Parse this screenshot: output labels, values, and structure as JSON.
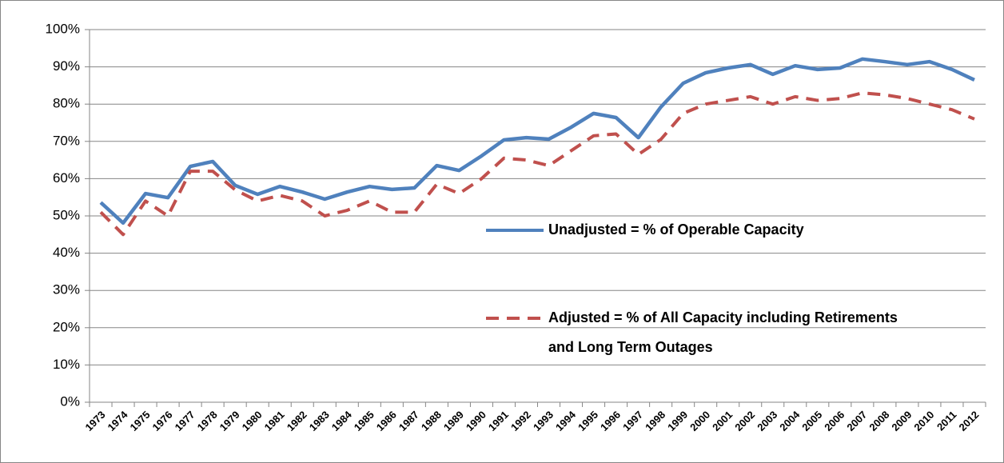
{
  "chart_data": {
    "type": "line",
    "categories": [
      "1973",
      "1974",
      "1975",
      "1976",
      "1977",
      "1978",
      "1979",
      "1980",
      "1981",
      "1982",
      "1983",
      "1984",
      "1985",
      "1986",
      "1987",
      "1988",
      "1989",
      "1990",
      "1991",
      "1992",
      "1993",
      "1994",
      "1995",
      "1996",
      "1997",
      "1998",
      "1999",
      "2000",
      "2001",
      "2002",
      "2003",
      "2004",
      "2005",
      "2006",
      "2007",
      "2008",
      "2009",
      "2010",
      "2011",
      "2012"
    ],
    "series": [
      {
        "name": "Unadjusted = % of Operable Capacity",
        "color": "#4f81bd",
        "dash": false,
        "values": [
          53.6,
          48.1,
          56.0,
          54.9,
          63.3,
          64.6,
          58.2,
          55.8,
          57.9,
          56.4,
          54.5,
          56.4,
          57.9,
          57.1,
          57.5,
          63.5,
          62.2,
          66.1,
          70.4,
          71.0,
          70.6,
          73.8,
          77.5,
          76.4,
          71.0,
          79.2,
          85.6,
          88.4,
          89.7,
          90.6,
          88.0,
          90.3,
          89.3,
          89.7,
          92.1,
          91.4,
          90.6,
          91.4,
          89.3,
          86.5
        ]
      },
      {
        "name": "Adjusted = % of All Capacity including Retirements and Long Term Outages",
        "color": "#c0504d",
        "dash": true,
        "values": [
          51,
          45,
          54,
          50,
          62,
          62,
          57,
          54,
          55.5,
          54,
          50,
          51.5,
          54,
          51,
          51,
          58.5,
          56,
          60,
          65.5,
          65,
          63.5,
          67.5,
          71.5,
          72,
          66.5,
          70.5,
          77.5,
          80,
          81,
          82,
          80,
          82,
          81,
          81.5,
          83,
          82.5,
          81.5,
          80,
          78.5,
          76
        ]
      }
    ],
    "ylim": [
      0,
      100
    ],
    "yticks": [
      {
        "value": 0,
        "label": "0%"
      },
      {
        "value": 10,
        "label": "10%"
      },
      {
        "value": 20,
        "label": "20%"
      },
      {
        "value": 30,
        "label": "30%"
      },
      {
        "value": 40,
        "label": "40%"
      },
      {
        "value": 50,
        "label": "50%"
      },
      {
        "value": 60,
        "label": "60%"
      },
      {
        "value": 70,
        "label": "70%"
      },
      {
        "value": 80,
        "label": "80%"
      },
      {
        "value": 90,
        "label": "90%"
      },
      {
        "value": 100,
        "label": "100%"
      }
    ],
    "grid": true,
    "legend": "right"
  }
}
